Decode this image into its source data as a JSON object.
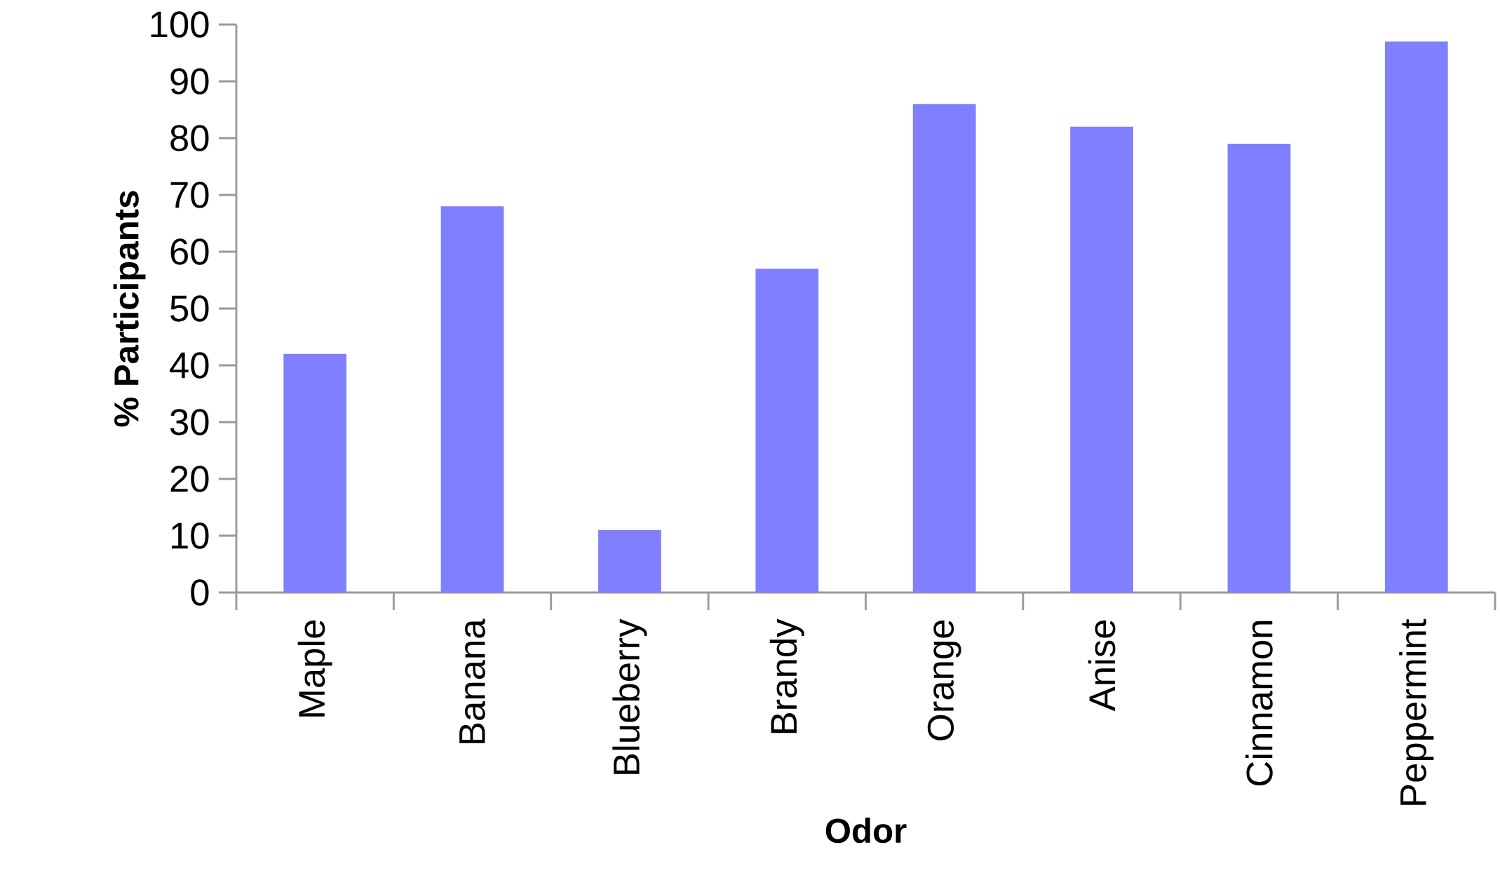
{
  "chart_data": {
    "type": "bar",
    "xlabel": "Odor",
    "ylabel": "% Participants",
    "categories": [
      "Maple",
      "Banana",
      "Blueberry",
      "Brandy",
      "Orange",
      "Anise",
      "Cinnamon",
      "Peppermint"
    ],
    "values": [
      42,
      68,
      11,
      57,
      86,
      82,
      79,
      97
    ],
    "color": "#7f7fff",
    "ylim": [
      0,
      100
    ],
    "yticks": [
      0,
      10,
      20,
      30,
      40,
      50,
      60,
      70,
      80,
      90,
      100
    ],
    "grid": false
  }
}
